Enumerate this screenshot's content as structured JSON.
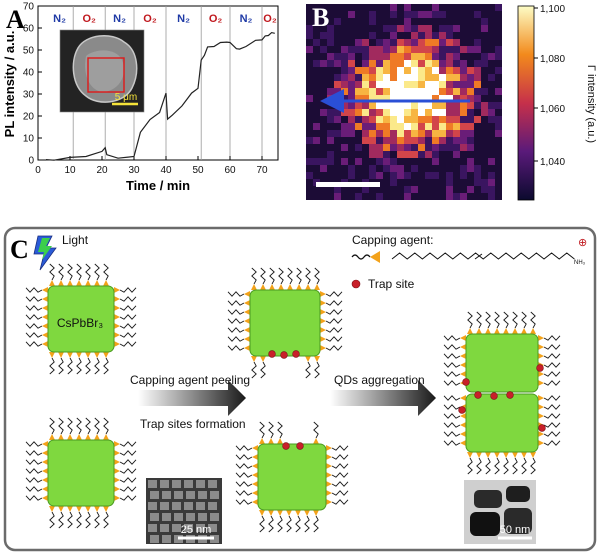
{
  "panel_a": {
    "letter": "A",
    "chart_data": {
      "type": "line",
      "xlabel": "Time / min",
      "ylabel": "PL intensity / a.u.",
      "xlim": [
        0,
        75
      ],
      "ylim": [
        0,
        70
      ],
      "x_ticks": [
        "0",
        "10",
        "20",
        "30",
        "40",
        "50",
        "60",
        "70"
      ],
      "y_ticks": [
        "0",
        "10",
        "20",
        "30",
        "40",
        "50",
        "60",
        "70"
      ],
      "atmosphere_segments": [
        {
          "label": "N₂",
          "start": 2.5,
          "end": 11,
          "color": "#1f3aa6"
        },
        {
          "label": "O₂",
          "start": 11,
          "end": 21,
          "color": "#c0181e"
        },
        {
          "label": "N₂",
          "start": 21,
          "end": 30,
          "color": "#1f3aa6"
        },
        {
          "label": "O₂",
          "start": 30,
          "end": 40,
          "color": "#c0181e"
        },
        {
          "label": "N₂",
          "start": 40,
          "end": 51,
          "color": "#1f3aa6"
        },
        {
          "label": "O₂",
          "start": 51,
          "end": 60,
          "color": "#c0181e"
        },
        {
          "label": "N₂",
          "start": 60,
          "end": 70,
          "color": "#1f3aa6"
        },
        {
          "label": "O₂",
          "start": 70,
          "end": 75,
          "color": "#c0181e"
        }
      ],
      "series": [
        {
          "x": [
            2.5,
            5,
            10,
            15,
            20,
            21,
            21.5,
            25,
            30,
            32,
            35,
            38,
            40,
            40.5,
            42,
            45,
            48,
            50,
            51,
            52,
            53,
            55,
            57,
            59,
            60,
            62,
            63,
            65,
            68,
            70,
            71,
            72,
            73,
            74
          ],
          "y": [
            0.2,
            0.3,
            0.8,
            2,
            3.5,
            6,
            2,
            1.2,
            1.2,
            13,
            18,
            22,
            30,
            19,
            20,
            25,
            30,
            33,
            45,
            48,
            51,
            52,
            53,
            54,
            53,
            51,
            50,
            52,
            54,
            55,
            56,
            57,
            57.5,
            58
          ]
        }
      ],
      "inset_scalebar": "5 μm"
    }
  },
  "panel_b": {
    "letter": "B",
    "colorbar_ticks": [
      "1,100",
      "1,080",
      "1,060",
      "1,040"
    ],
    "colorbar_label": "Γ intensity (a.u.)"
  },
  "panel_c": {
    "letter": "C",
    "light_label": "Light",
    "capping_agent_label": "Capping agent:",
    "trap_site_label": "Trap site",
    "qd_label": "CsPbBr₃",
    "step1_top": "Capping agent peeling",
    "step1_bottom": "Trap sites formation",
    "step2": "QDs aggregation",
    "tem1_scale": "25 nm",
    "tem2_scale": "50 nm",
    "nh3_label": "NH₃",
    "charge": "⊕"
  },
  "colors": {
    "cube": "#7fd83f",
    "cube_edge": "#4a9a20",
    "ligand_head": "#f3a21a",
    "trap": "#c8202a",
    "panel_c_border": "#6b6b6b"
  }
}
